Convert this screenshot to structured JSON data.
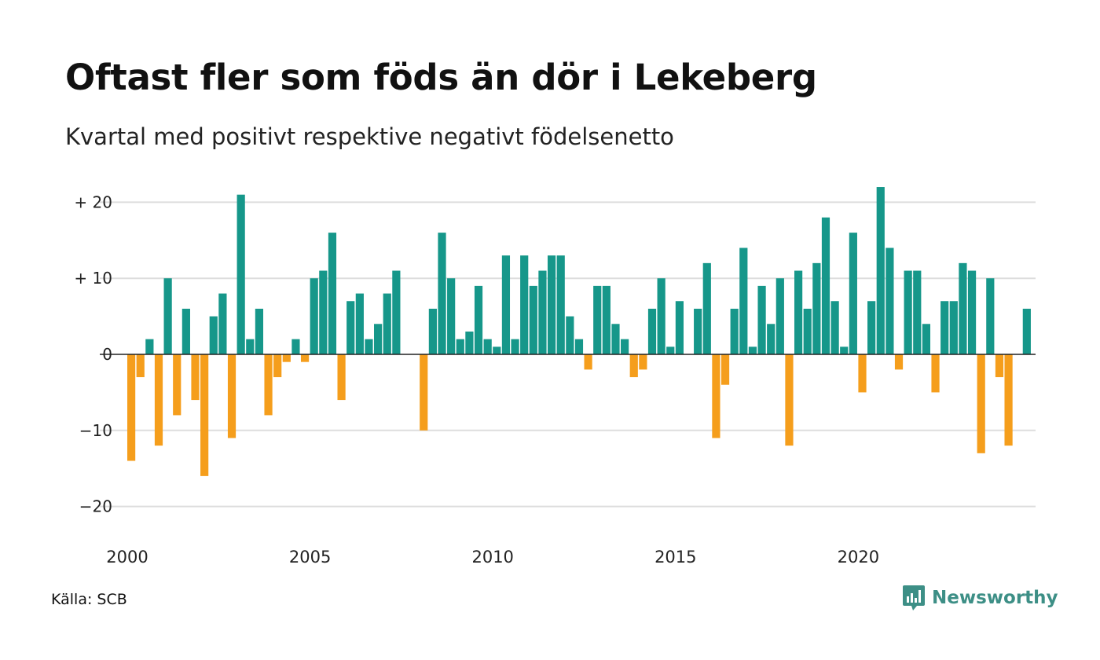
{
  "title": "Oftast fler som föds än dör i Lekeberg",
  "subtitle": "Kvartal med positivt respektive negativt födelsenetto",
  "source": "Källa: SCB",
  "logo_text": "Newsworthy",
  "colors": {
    "positive": "#16978a",
    "negative": "#f59e1c",
    "grid": "#dddddd",
    "logo": "#3d8f86"
  },
  "chart_data": {
    "type": "bar",
    "x_start_year": 2000,
    "x_start_quarter": 1,
    "ylim": [
      -23,
      23
    ],
    "yticks": [
      {
        "value": 20,
        "label": "+ 20"
      },
      {
        "value": 10,
        "label": "+ 10"
      },
      {
        "value": 0,
        "label": "0"
      },
      {
        "value": -10,
        "label": "−10"
      },
      {
        "value": -20,
        "label": "−20"
      }
    ],
    "xticks": [
      {
        "value": 2000,
        "label": "2000"
      },
      {
        "value": 2005,
        "label": "2005"
      },
      {
        "value": 2010,
        "label": "2010"
      },
      {
        "value": 2015,
        "label": "2015"
      },
      {
        "value": 2020,
        "label": "2020"
      }
    ],
    "values": [
      -14,
      -3,
      2,
      -12,
      10,
      -8,
      6,
      -6,
      -16,
      5,
      8,
      -11,
      21,
      2,
      6,
      -8,
      -3,
      -1,
      2,
      -1,
      10,
      11,
      16,
      -6,
      7,
      8,
      2,
      4,
      8,
      11,
      0,
      0,
      -10,
      6,
      16,
      10,
      2,
      3,
      9,
      2,
      1,
      13,
      2,
      13,
      9,
      11,
      13,
      13,
      5,
      2,
      -2,
      9,
      9,
      4,
      2,
      -3,
      -2,
      6,
      10,
      1,
      7,
      0,
      6,
      12,
      -11,
      -4,
      6,
      14,
      1,
      9,
      4,
      10,
      -12,
      11,
      6,
      12,
      18,
      7,
      1,
      16,
      -5,
      7,
      22,
      14,
      -2,
      11,
      11,
      4,
      -5,
      7,
      7,
      12,
      11,
      -13,
      10,
      -3,
      -12,
      0,
      6
    ]
  }
}
